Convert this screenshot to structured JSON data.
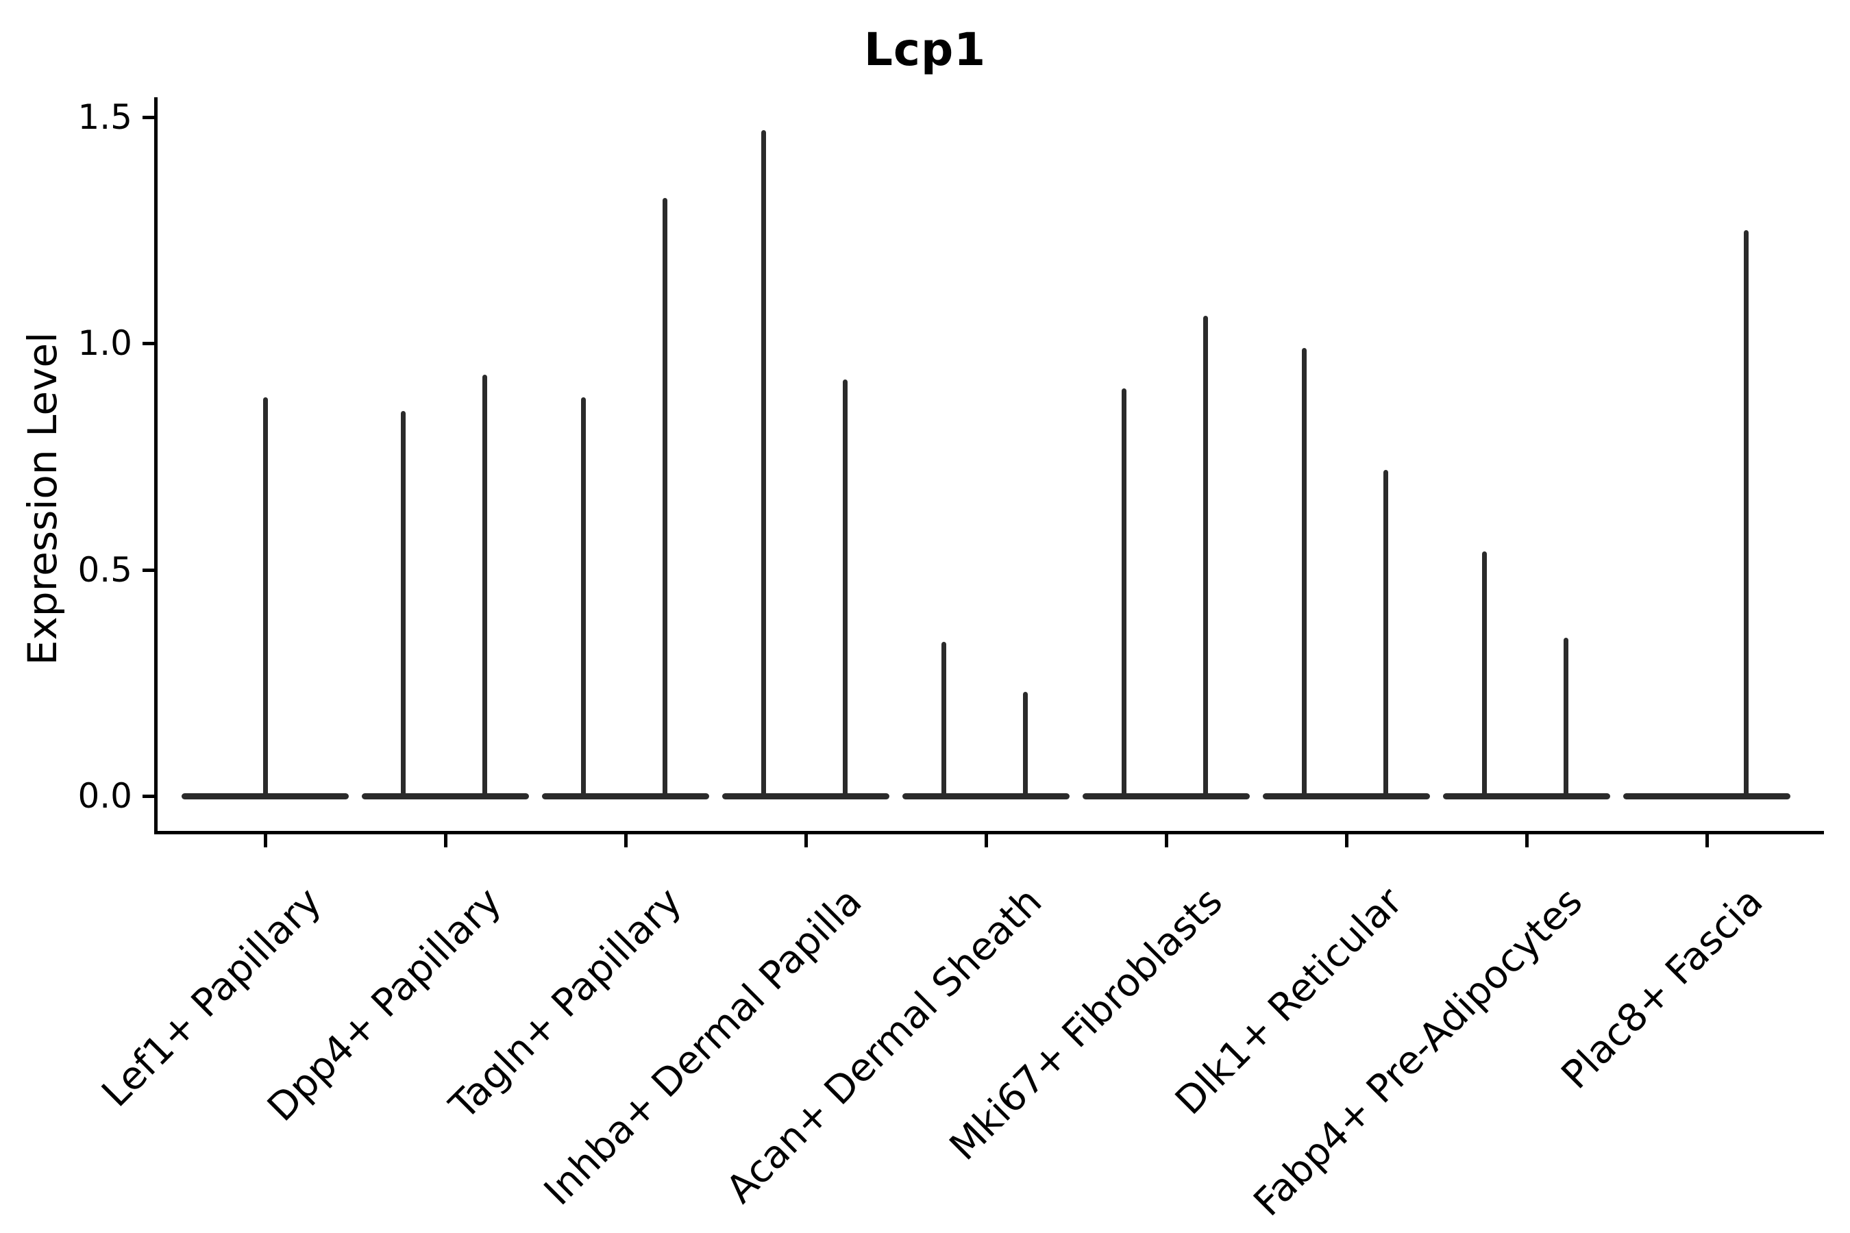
{
  "chart_data": {
    "type": "violin",
    "title": "Lcp1",
    "xlabel": "",
    "ylabel": "Expression Level",
    "yticks": [
      "0.0",
      "0.5",
      "1.0",
      "1.5"
    ],
    "ytick_values": [
      0.0,
      0.5,
      1.0,
      1.5
    ],
    "ylim": [
      -0.08,
      1.55
    ],
    "grid": false,
    "legend": "none",
    "violin_color": "#2b2b2b",
    "axis_color": "#000000",
    "description": "Violin plot of Lcp1 expression per fibroblast subtype; each category shows a flat zero-inflated body at 0 with thin density spikes (two sub-violins per category where present) rising to the maximum expression value.",
    "categories": [
      "Lef1+ Papillary",
      "Dpp4+ Papillary",
      "Tagln+ Papillary",
      "Inhba+ Dermal Papilla",
      "Acan+ Dermal Sheath",
      "Mki67+ Fibroblasts",
      "Dlk1+ Reticular",
      "Fabp4+ Pre-Adipocytes",
      "Plac8+ Fascia"
    ],
    "violins": [
      {
        "category": "Lef1+ Papillary",
        "body_center_value": 0.0,
        "spikes": [
          {
            "position": "center",
            "offset_frac": 0.0,
            "max": 0.88
          }
        ]
      },
      {
        "category": "Dpp4+ Papillary",
        "body_center_value": 0.0,
        "spikes": [
          {
            "position": "left",
            "offset_frac": -0.232,
            "max": 0.85
          },
          {
            "position": "right",
            "offset_frac": 0.217,
            "max": 0.93
          }
        ]
      },
      {
        "category": "Tagln+ Papillary",
        "body_center_value": 0.0,
        "spikes": [
          {
            "position": "left",
            "offset_frac": -0.232,
            "max": 0.88
          },
          {
            "position": "right",
            "offset_frac": 0.217,
            "max": 1.32
          }
        ]
      },
      {
        "category": "Inhba+ Dermal Papilla",
        "body_center_value": 0.0,
        "spikes": [
          {
            "position": "left",
            "offset_frac": -0.232,
            "max": 1.47
          },
          {
            "position": "right",
            "offset_frac": 0.217,
            "max": 0.92
          }
        ]
      },
      {
        "category": "Acan+ Dermal Sheath",
        "body_center_value": 0.0,
        "spikes": [
          {
            "position": "left",
            "offset_frac": -0.232,
            "max": 0.34
          },
          {
            "position": "right",
            "offset_frac": 0.217,
            "max": 0.23
          }
        ]
      },
      {
        "category": "Mki67+ Fibroblasts",
        "body_center_value": 0.0,
        "spikes": [
          {
            "position": "left",
            "offset_frac": -0.232,
            "max": 0.9
          },
          {
            "position": "right",
            "offset_frac": 0.217,
            "max": 1.06
          }
        ]
      },
      {
        "category": "Dlk1+ Reticular",
        "body_center_value": 0.0,
        "spikes": [
          {
            "position": "left",
            "offset_frac": -0.232,
            "max": 0.99
          },
          {
            "position": "right",
            "offset_frac": 0.217,
            "max": 0.72
          }
        ]
      },
      {
        "category": "Fabp4+ Pre-Adipocytes",
        "body_center_value": 0.0,
        "spikes": [
          {
            "position": "left",
            "offset_frac": -0.232,
            "max": 0.54
          },
          {
            "position": "right",
            "offset_frac": 0.217,
            "max": 0.35
          }
        ]
      },
      {
        "category": "Plac8+ Fascia",
        "body_center_value": 0.0,
        "spikes": [
          {
            "position": "right",
            "offset_frac": 0.217,
            "max": 1.25
          }
        ]
      }
    ]
  }
}
